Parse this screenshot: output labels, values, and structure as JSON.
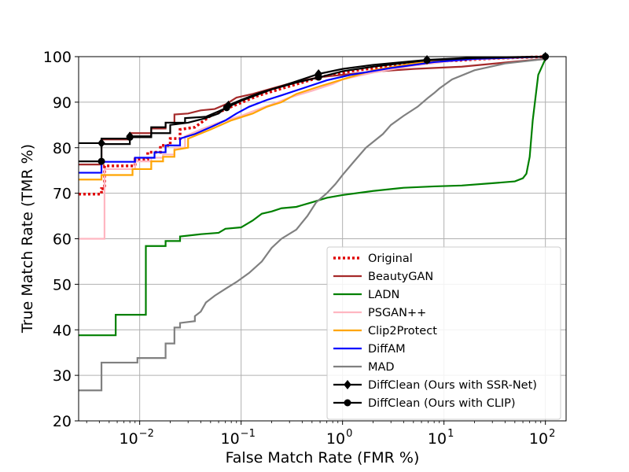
{
  "chart_data": {
    "type": "line",
    "title": "",
    "xlabel": "False Match Rate (FMR %)",
    "ylabel": "True Match Rate (TMR %)",
    "xscale": "log",
    "xlim": [
      0.0025,
      160
    ],
    "ylim": [
      20,
      100
    ],
    "grid": true,
    "legend_position": "lower-right",
    "x_ticks": [
      {
        "value": 0.01,
        "label": "10",
        "exp": "−2"
      },
      {
        "value": 0.1,
        "label": "10",
        "exp": "−1"
      },
      {
        "value": 1,
        "label": "10",
        "exp": "0"
      },
      {
        "value": 10,
        "label": "10",
        "exp": "1"
      },
      {
        "value": 100,
        "label": "10",
        "exp": "2"
      }
    ],
    "y_ticks": [
      20,
      30,
      40,
      50,
      60,
      70,
      80,
      90,
      100
    ],
    "series": [
      {
        "name": "Original",
        "color": "#e00000",
        "style": "dotted",
        "marker": "none",
        "points": [
          [
            0.0025,
            69.8
          ],
          [
            0.0042,
            69.8
          ],
          [
            0.0042,
            71
          ],
          [
            0.0045,
            71
          ],
          [
            0.0045,
            76
          ],
          [
            0.009,
            76
          ],
          [
            0.009,
            77.5
          ],
          [
            0.012,
            77.5
          ],
          [
            0.012,
            79
          ],
          [
            0.016,
            79
          ],
          [
            0.016,
            80.5
          ],
          [
            0.02,
            80.5
          ],
          [
            0.02,
            82
          ],
          [
            0.025,
            82
          ],
          [
            0.025,
            84
          ],
          [
            0.035,
            84.5
          ],
          [
            0.05,
            87
          ],
          [
            0.08,
            89
          ],
          [
            0.15,
            91.5
          ],
          [
            0.3,
            93.5
          ],
          [
            0.6,
            95.5
          ],
          [
            1.2,
            96.8
          ],
          [
            3,
            98
          ],
          [
            10,
            99
          ],
          [
            30,
            99.6
          ],
          [
            100,
            100
          ]
        ]
      },
      {
        "name": "BeautyGAN",
        "color": "#a52a2a",
        "style": "solid",
        "marker": "none",
        "points": [
          [
            0.0025,
            76.3
          ],
          [
            0.0042,
            76.3
          ],
          [
            0.0042,
            81.8
          ],
          [
            0.008,
            81.8
          ],
          [
            0.008,
            83.2
          ],
          [
            0.013,
            83.2
          ],
          [
            0.013,
            84.2
          ],
          [
            0.018,
            84.2
          ],
          [
            0.018,
            85.5
          ],
          [
            0.022,
            85.5
          ],
          [
            0.022,
            87.3
          ],
          [
            0.03,
            87.5
          ],
          [
            0.04,
            88.2
          ],
          [
            0.055,
            88.5
          ],
          [
            0.07,
            89.5
          ],
          [
            0.09,
            91
          ],
          [
            0.13,
            91.8
          ],
          [
            0.2,
            93
          ],
          [
            0.35,
            94.5
          ],
          [
            0.6,
            95.5
          ],
          [
            1,
            96
          ],
          [
            2,
            96.7
          ],
          [
            5,
            97.3
          ],
          [
            15,
            97.8
          ],
          [
            40,
            98.7
          ],
          [
            100,
            99.5
          ]
        ]
      },
      {
        "name": "LADN",
        "color": "#008000",
        "style": "solid",
        "marker": "none",
        "points": [
          [
            0.0025,
            38.8
          ],
          [
            0.0058,
            38.8
          ],
          [
            0.0058,
            43.3
          ],
          [
            0.0115,
            43.3
          ],
          [
            0.0115,
            58.4
          ],
          [
            0.018,
            58.4
          ],
          [
            0.018,
            59.5
          ],
          [
            0.025,
            59.5
          ],
          [
            0.025,
            60.5
          ],
          [
            0.04,
            61
          ],
          [
            0.06,
            61.3
          ],
          [
            0.07,
            62.2
          ],
          [
            0.1,
            62.5
          ],
          [
            0.13,
            64
          ],
          [
            0.16,
            65.5
          ],
          [
            0.2,
            66
          ],
          [
            0.25,
            66.7
          ],
          [
            0.35,
            67
          ],
          [
            0.5,
            68
          ],
          [
            0.7,
            69
          ],
          [
            1,
            69.6
          ],
          [
            2,
            70.5
          ],
          [
            4,
            71.2
          ],
          [
            8,
            71.5
          ],
          [
            15,
            71.7
          ],
          [
            30,
            72.2
          ],
          [
            50,
            72.6
          ],
          [
            60,
            73.3
          ],
          [
            65,
            74.3
          ],
          [
            70,
            78
          ],
          [
            75,
            86
          ],
          [
            85,
            96
          ],
          [
            100,
            99.5
          ]
        ]
      },
      {
        "name": "PSGAN++",
        "color": "#ffb6c1",
        "style": "solid",
        "marker": "none",
        "points": [
          [
            0.0025,
            60
          ],
          [
            0.0045,
            60
          ],
          [
            0.0045,
            75.3
          ],
          [
            0.009,
            75.3
          ],
          [
            0.009,
            77
          ],
          [
            0.013,
            77
          ],
          [
            0.013,
            77.8
          ],
          [
            0.017,
            77.8
          ],
          [
            0.017,
            78.5
          ],
          [
            0.022,
            78.5
          ],
          [
            0.022,
            80
          ],
          [
            0.028,
            80
          ],
          [
            0.028,
            82.5
          ],
          [
            0.04,
            84
          ],
          [
            0.06,
            85.5
          ],
          [
            0.1,
            87
          ],
          [
            0.15,
            88.5
          ],
          [
            0.2,
            89.5
          ],
          [
            0.3,
            91
          ],
          [
            0.5,
            92.5
          ],
          [
            0.8,
            94
          ],
          [
            1,
            95
          ],
          [
            2,
            96.5
          ],
          [
            5,
            98
          ],
          [
            15,
            99.3
          ],
          [
            100,
            100
          ]
        ]
      },
      {
        "name": "Clip2Protect",
        "color": "#ffa500",
        "style": "solid",
        "marker": "none",
        "points": [
          [
            0.0025,
            73
          ],
          [
            0.0042,
            73
          ],
          [
            0.0042,
            74
          ],
          [
            0.0085,
            74
          ],
          [
            0.0085,
            75.3
          ],
          [
            0.013,
            75.3
          ],
          [
            0.013,
            77
          ],
          [
            0.017,
            77
          ],
          [
            0.017,
            78
          ],
          [
            0.022,
            78
          ],
          [
            0.022,
            79.5
          ],
          [
            0.03,
            80
          ],
          [
            0.03,
            82
          ],
          [
            0.05,
            84
          ],
          [
            0.08,
            86
          ],
          [
            0.13,
            87.5
          ],
          [
            0.18,
            89
          ],
          [
            0.25,
            90
          ],
          [
            0.35,
            91.8
          ],
          [
            0.6,
            93.5
          ],
          [
            1,
            95
          ],
          [
            2,
            97
          ],
          [
            5,
            98.5
          ],
          [
            15,
            99.5
          ],
          [
            100,
            100
          ]
        ]
      },
      {
        "name": "DiffAM",
        "color": "#0000ff",
        "style": "solid",
        "marker": "none",
        "points": [
          [
            0.0025,
            74.5
          ],
          [
            0.0042,
            74.5
          ],
          [
            0.0042,
            76.9
          ],
          [
            0.009,
            76.9
          ],
          [
            0.009,
            77.8
          ],
          [
            0.014,
            77.8
          ],
          [
            0.014,
            79
          ],
          [
            0.018,
            79
          ],
          [
            0.018,
            80.5
          ],
          [
            0.025,
            80.5
          ],
          [
            0.025,
            82
          ],
          [
            0.035,
            83
          ],
          [
            0.05,
            84.5
          ],
          [
            0.07,
            86
          ],
          [
            0.09,
            87.5
          ],
          [
            0.12,
            89
          ],
          [
            0.18,
            90.5
          ],
          [
            0.25,
            91.5
          ],
          [
            0.4,
            93
          ],
          [
            0.7,
            94.8
          ],
          [
            1.2,
            96
          ],
          [
            3,
            97.5
          ],
          [
            8,
            98.8
          ],
          [
            20,
            99.5
          ],
          [
            100,
            100
          ]
        ]
      },
      {
        "name": "MAD",
        "color": "#808080",
        "style": "solid",
        "marker": "none",
        "points": [
          [
            0.0025,
            26.7
          ],
          [
            0.0042,
            26.7
          ],
          [
            0.0042,
            32.8
          ],
          [
            0.0095,
            32.8
          ],
          [
            0.0095,
            33.8
          ],
          [
            0.018,
            33.8
          ],
          [
            0.018,
            37
          ],
          [
            0.022,
            37
          ],
          [
            0.022,
            40.5
          ],
          [
            0.025,
            40.5
          ],
          [
            0.025,
            41.5
          ],
          [
            0.035,
            41.9
          ],
          [
            0.035,
            43
          ],
          [
            0.04,
            44
          ],
          [
            0.045,
            46
          ],
          [
            0.055,
            47.5
          ],
          [
            0.07,
            49
          ],
          [
            0.09,
            50.5
          ],
          [
            0.12,
            52.5
          ],
          [
            0.16,
            55
          ],
          [
            0.2,
            58
          ],
          [
            0.25,
            60
          ],
          [
            0.35,
            62
          ],
          [
            0.45,
            65
          ],
          [
            0.55,
            68
          ],
          [
            0.7,
            70
          ],
          [
            0.85,
            72
          ],
          [
            1,
            74
          ],
          [
            1.3,
            77
          ],
          [
            1.7,
            80
          ],
          [
            2.5,
            83
          ],
          [
            3,
            85
          ],
          [
            4,
            87
          ],
          [
            5.5,
            89
          ],
          [
            7,
            91
          ],
          [
            8,
            92
          ],
          [
            9,
            93
          ],
          [
            12,
            95
          ],
          [
            20,
            97
          ],
          [
            40,
            98.5
          ],
          [
            100,
            99.5
          ]
        ]
      },
      {
        "name": "DiffClean (Ours with SSR-Net)",
        "color": "#000000",
        "style": "solid",
        "marker": "diamond",
        "points": [
          [
            0.0025,
            81
          ],
          [
            0.0042,
            81
          ],
          [
            0.0042,
            80.8
          ],
          [
            0.008,
            80.8
          ],
          [
            0.008,
            82.5
          ],
          [
            0.013,
            82.5
          ],
          [
            0.013,
            83.2
          ],
          [
            0.02,
            83.2
          ],
          [
            0.02,
            85
          ],
          [
            0.03,
            85.5
          ],
          [
            0.045,
            86.5
          ],
          [
            0.06,
            87.5
          ],
          [
            0.075,
            89.3
          ],
          [
            0.1,
            90.5
          ],
          [
            0.15,
            92
          ],
          [
            0.25,
            93.5
          ],
          [
            0.4,
            95
          ],
          [
            0.58,
            96.2
          ],
          [
            1,
            97.3
          ],
          [
            2,
            98.2
          ],
          [
            6.8,
            99.3
          ],
          [
            20,
            99.8
          ],
          [
            100,
            100
          ]
        ],
        "marker_points": [
          [
            0.0042,
            81
          ],
          [
            0.008,
            82.5
          ],
          [
            0.075,
            89.3
          ],
          [
            0.58,
            96.2
          ],
          [
            6.8,
            99.3
          ],
          [
            100,
            100
          ]
        ]
      },
      {
        "name": "DiffClean (Ours with CLIP)",
        "color": "#000000",
        "style": "solid",
        "marker": "circle",
        "points": [
          [
            0.0025,
            77
          ],
          [
            0.0042,
            77
          ],
          [
            0.0042,
            82
          ],
          [
            0.008,
            82
          ],
          [
            0.008,
            82.3
          ],
          [
            0.013,
            82.3
          ],
          [
            0.013,
            84.5
          ],
          [
            0.018,
            84.5
          ],
          [
            0.018,
            85.5
          ],
          [
            0.028,
            85.5
          ],
          [
            0.028,
            86.5
          ],
          [
            0.045,
            86.8
          ],
          [
            0.06,
            88
          ],
          [
            0.072,
            88.8
          ],
          [
            0.1,
            90.3
          ],
          [
            0.2,
            92.8
          ],
          [
            0.35,
            94.3
          ],
          [
            0.6,
            95.5
          ],
          [
            1,
            96.8
          ],
          [
            2,
            97.8
          ],
          [
            6.8,
            99.2
          ],
          [
            20,
            99.7
          ],
          [
            100,
            100
          ]
        ],
        "marker_points": [
          [
            0.0042,
            77
          ],
          [
            0.008,
            82.3
          ],
          [
            0.072,
            88.8
          ],
          [
            0.58,
            95.5
          ],
          [
            6.8,
            99.2
          ],
          [
            100,
            100
          ]
        ]
      }
    ]
  }
}
